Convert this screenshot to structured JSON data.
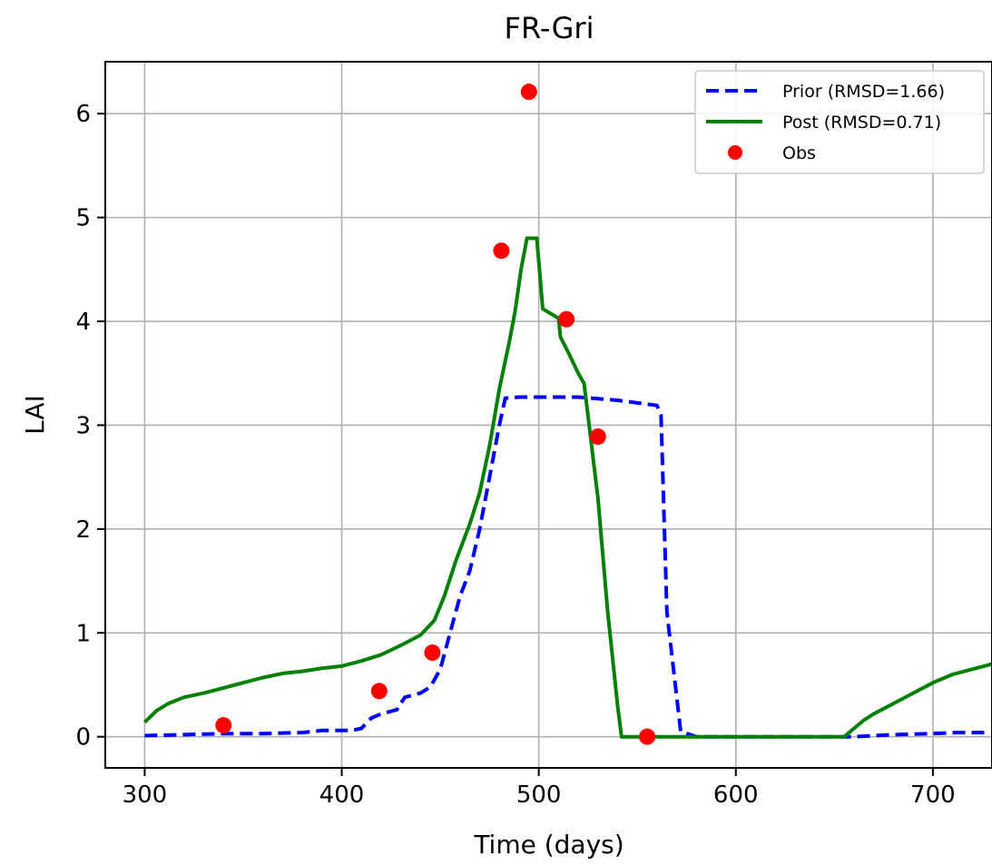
{
  "chart_data": {
    "type": "line",
    "title": "FR-Gri",
    "xlabel": "Time (days)",
    "ylabel": "LAI",
    "xlim": [
      280,
      730
    ],
    "ylim": [
      -0.3,
      6.5
    ],
    "xticks": [
      300,
      400,
      500,
      600,
      700
    ],
    "yticks": [
      0,
      1,
      2,
      3,
      4,
      5,
      6
    ],
    "grid": true,
    "legend_position": "top-right",
    "series": [
      {
        "name": "Prior (RMSD=1.66)",
        "style": "dashed",
        "color": "#0000ff",
        "points": [
          [
            300,
            0.01
          ],
          [
            320,
            0.02
          ],
          [
            340,
            0.03
          ],
          [
            360,
            0.03
          ],
          [
            380,
            0.04
          ],
          [
            390,
            0.06
          ],
          [
            405,
            0.06
          ],
          [
            410,
            0.08
          ],
          [
            415,
            0.18
          ],
          [
            420,
            0.22
          ],
          [
            428,
            0.26
          ],
          [
            432,
            0.38
          ],
          [
            440,
            0.42
          ],
          [
            445,
            0.48
          ],
          [
            450,
            0.65
          ],
          [
            455,
            1.0
          ],
          [
            460,
            1.35
          ],
          [
            465,
            1.6
          ],
          [
            470,
            2.0
          ],
          [
            475,
            2.5
          ],
          [
            480,
            3.0
          ],
          [
            483,
            3.26
          ],
          [
            490,
            3.27
          ],
          [
            500,
            3.27
          ],
          [
            520,
            3.27
          ],
          [
            540,
            3.24
          ],
          [
            560,
            3.19
          ],
          [
            562,
            3.1
          ],
          [
            565,
            1.2
          ],
          [
            572,
            0.05
          ],
          [
            580,
            0.0
          ],
          [
            650,
            0.0
          ],
          [
            660,
            0.0
          ],
          [
            680,
            0.02
          ],
          [
            700,
            0.03
          ],
          [
            712,
            0.04
          ],
          [
            728,
            0.04
          ]
        ]
      },
      {
        "name": "Post (RMSD=0.71)",
        "style": "solid",
        "color": "#008000",
        "points": [
          [
            300,
            0.14
          ],
          [
            306,
            0.25
          ],
          [
            312,
            0.32
          ],
          [
            320,
            0.38
          ],
          [
            330,
            0.42
          ],
          [
            340,
            0.47
          ],
          [
            350,
            0.52
          ],
          [
            360,
            0.57
          ],
          [
            370,
            0.61
          ],
          [
            380,
            0.63
          ],
          [
            390,
            0.66
          ],
          [
            400,
            0.68
          ],
          [
            410,
            0.73
          ],
          [
            420,
            0.79
          ],
          [
            430,
            0.88
          ],
          [
            440,
            0.98
          ],
          [
            447,
            1.12
          ],
          [
            452,
            1.35
          ],
          [
            458,
            1.7
          ],
          [
            465,
            2.05
          ],
          [
            470,
            2.35
          ],
          [
            475,
            2.8
          ],
          [
            480,
            3.35
          ],
          [
            485,
            3.8
          ],
          [
            488,
            4.1
          ],
          [
            491,
            4.5
          ],
          [
            494,
            4.8
          ],
          [
            499,
            4.8
          ],
          [
            502,
            4.12
          ],
          [
            510,
            4.03
          ],
          [
            511,
            3.85
          ],
          [
            515,
            3.7
          ],
          [
            520,
            3.5
          ],
          [
            523,
            3.4
          ],
          [
            530,
            2.3
          ],
          [
            535,
            1.2
          ],
          [
            540,
            0.3
          ],
          [
            542,
            0.0
          ],
          [
            560,
            0.0
          ],
          [
            600,
            0.0
          ],
          [
            640,
            0.0
          ],
          [
            655,
            0.0
          ],
          [
            660,
            0.08
          ],
          [
            665,
            0.16
          ],
          [
            670,
            0.22
          ],
          [
            675,
            0.27
          ],
          [
            680,
            0.32
          ],
          [
            690,
            0.42
          ],
          [
            700,
            0.52
          ],
          [
            710,
            0.6
          ],
          [
            720,
            0.65
          ],
          [
            730,
            0.7
          ]
        ]
      },
      {
        "name": "Obs",
        "style": "markers",
        "color": "#ff0000",
        "points": [
          [
            340,
            0.11
          ],
          [
            419,
            0.44
          ],
          [
            446,
            0.81
          ],
          [
            481,
            4.68
          ],
          [
            495,
            6.21
          ],
          [
            514,
            4.02
          ],
          [
            530,
            2.89
          ],
          [
            555,
            0.0
          ]
        ]
      }
    ]
  }
}
